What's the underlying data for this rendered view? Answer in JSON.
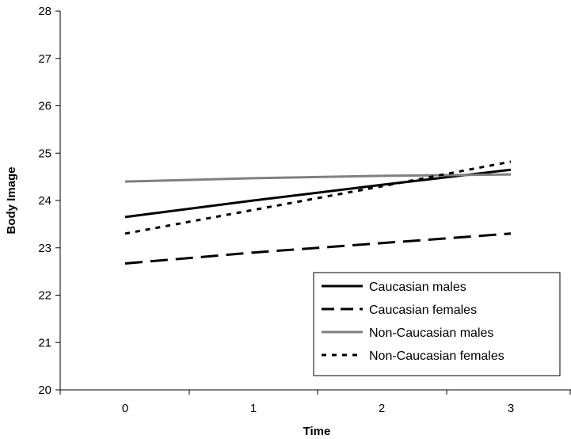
{
  "chart_data": {
    "type": "line",
    "title": "",
    "xlabel": "Time",
    "ylabel": "Body Image",
    "x": [
      0,
      1,
      2,
      3
    ],
    "x_tick_labels": [
      "0",
      "1",
      "2",
      "3"
    ],
    "ylim": [
      20,
      28
    ],
    "y_ticks": [
      20,
      21,
      22,
      23,
      24,
      25,
      26,
      27,
      28
    ],
    "grid": false,
    "legend_position": "bottom-right",
    "series": [
      {
        "name": "Caucasian males",
        "values": [
          23.65,
          24.0,
          24.33,
          24.65
        ],
        "color": "#000000",
        "style": "solid"
      },
      {
        "name": "Caucasian females",
        "values": [
          22.67,
          22.9,
          23.1,
          23.3
        ],
        "color": "#000000",
        "style": "long-dash"
      },
      {
        "name": "Non-Caucasian males",
        "values": [
          24.4,
          24.47,
          24.52,
          24.55
        ],
        "color": "#808080",
        "style": "solid"
      },
      {
        "name": "Non-Caucasian females",
        "values": [
          23.3,
          23.8,
          24.3,
          24.82
        ],
        "color": "#000000",
        "style": "dotted"
      }
    ]
  }
}
